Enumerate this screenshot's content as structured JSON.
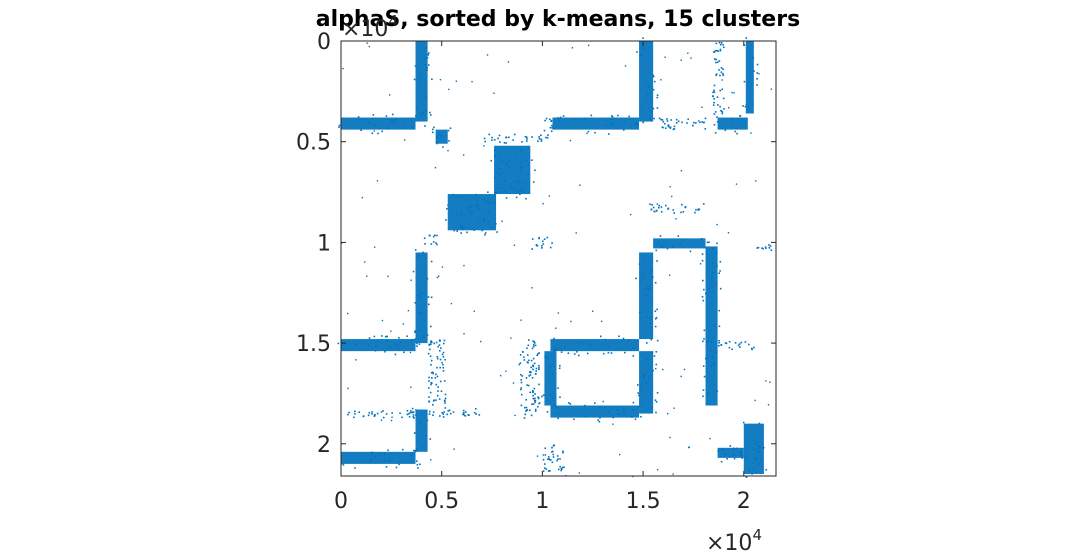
{
  "chart_data": {
    "type": "scatter",
    "plot_kind": "spy",
    "title": "alphaS, sorted by k-means, 15 clusters",
    "xlabel": "",
    "ylabel": "",
    "xlim": [
      0,
      21600
    ],
    "ylim": [
      0,
      21600
    ],
    "y_axis_reversed": true,
    "grid": false,
    "marker_color": "#0072BD",
    "x_ticks": [
      {
        "value": 0,
        "label": "0"
      },
      {
        "value": 5000,
        "label": "0.5"
      },
      {
        "value": 10000,
        "label": "1"
      },
      {
        "value": 15000,
        "label": "1.5"
      },
      {
        "value": 20000,
        "label": "2"
      }
    ],
    "y_ticks": [
      {
        "value": 0,
        "label": "0"
      },
      {
        "value": 5000,
        "label": "0.5"
      },
      {
        "value": 10000,
        "label": "1"
      },
      {
        "value": 15000,
        "label": "1.5"
      },
      {
        "value": 20000,
        "label": "2"
      }
    ],
    "x_exponent": {
      "base": "×10",
      "power": "4"
    },
    "y_exponent": {
      "base": "×10",
      "power": "4"
    },
    "dense_blocks": [
      {
        "x": [
          3700,
          4300
        ],
        "y": [
          0,
          4000
        ]
      },
      {
        "x": [
          0,
          3700
        ],
        "y": [
          3800,
          4400
        ]
      },
      {
        "x": [
          7600,
          9400
        ],
        "y": [
          5200,
          7600
        ]
      },
      {
        "x": [
          5300,
          7700
        ],
        "y": [
          7600,
          9400
        ]
      },
      {
        "x": [
          14800,
          15500
        ],
        "y": [
          0,
          4000
        ]
      },
      {
        "x": [
          10500,
          14800
        ],
        "y": [
          3800,
          4400
        ]
      },
      {
        "x": [
          4700,
          5300
        ],
        "y": [
          4400,
          5100
        ]
      },
      {
        "x": [
          3700,
          4300
        ],
        "y": [
          10500,
          15000
        ]
      },
      {
        "x": [
          0,
          3700
        ],
        "y": [
          14800,
          15400
        ]
      },
      {
        "x": [
          10400,
          14800
        ],
        "y": [
          14800,
          15400
        ]
      },
      {
        "x": [
          14800,
          15500
        ],
        "y": [
          10500,
          14800
        ]
      },
      {
        "x": [
          14800,
          15500
        ],
        "y": [
          15400,
          18500
        ]
      },
      {
        "x": [
          10400,
          14800
        ],
        "y": [
          18100,
          18700
        ]
      },
      {
        "x": [
          18100,
          18700
        ],
        "y": [
          10200,
          18100
        ]
      },
      {
        "x": [
          15500,
          18100
        ],
        "y": [
          9800,
          10300
        ]
      },
      {
        "x": [
          10100,
          10700
        ],
        "y": [
          15400,
          18100
        ]
      },
      {
        "x": [
          3700,
          4300
        ],
        "y": [
          18300,
          20400
        ]
      },
      {
        "x": [
          0,
          3700
        ],
        "y": [
          20400,
          21000
        ]
      },
      {
        "x": [
          20000,
          21000
        ],
        "y": [
          19000,
          21500
        ]
      },
      {
        "x": [
          18700,
          20000
        ],
        "y": [
          20200,
          20700
        ]
      },
      {
        "x": [
          20100,
          20500
        ],
        "y": [
          0,
          3600
        ]
      },
      {
        "x": [
          18700,
          20200
        ],
        "y": [
          3800,
          4400
        ]
      }
    ],
    "sparse_blocks": [
      {
        "x": [
          0,
          3700
        ],
        "y": [
          18300,
          18700
        ]
      },
      {
        "x": [
          4300,
          5200
        ],
        "y": [
          14800,
          18700
        ]
      },
      {
        "x": [
          8800,
          9800
        ],
        "y": [
          14800,
          18700
        ]
      },
      {
        "x": [
          15500,
          18100
        ],
        "y": [
          3800,
          4400
        ]
      },
      {
        "x": [
          18400,
          19000
        ],
        "y": [
          0,
          3600
        ]
      },
      {
        "x": [
          10000,
          10500
        ],
        "y": [
          3800,
          4800
        ]
      },
      {
        "x": [
          7000,
          10000
        ],
        "y": [
          4600,
          5000
        ]
      },
      {
        "x": [
          4000,
          5000
        ],
        "y": [
          9600,
          10100
        ]
      },
      {
        "x": [
          9400,
          10500
        ],
        "y": [
          9700,
          10300
        ]
      },
      {
        "x": [
          18700,
          20500
        ],
        "y": [
          14800,
          15300
        ]
      },
      {
        "x": [
          5000,
          7000
        ],
        "y": [
          18200,
          18600
        ]
      },
      {
        "x": [
          10000,
          11000
        ],
        "y": [
          20000,
          21500
        ]
      },
      {
        "x": [
          15300,
          18000
        ],
        "y": [
          8000,
          8500
        ]
      },
      {
        "x": [
          20500,
          21500
        ],
        "y": [
          10000,
          10400
        ]
      }
    ]
  }
}
